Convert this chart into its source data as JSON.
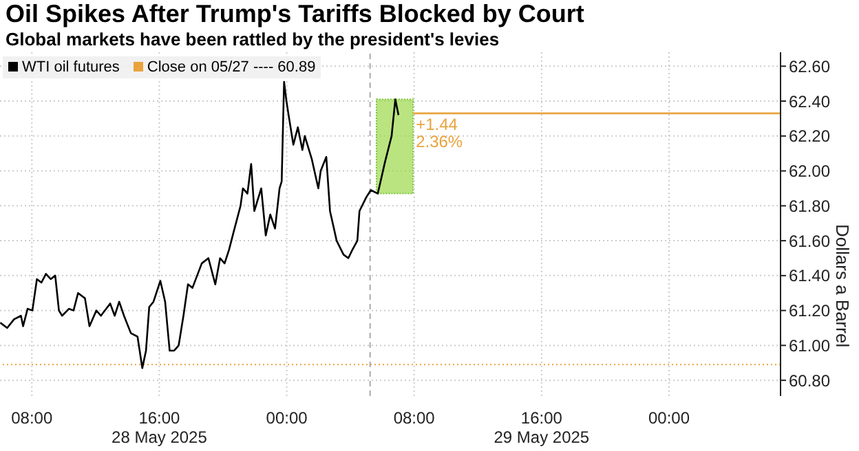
{
  "chart_data": {
    "type": "line",
    "title": "Oil Spikes After Trump's Tariffs Blocked by Court",
    "subtitle": "Global markets have been rattled by the president's levies",
    "ylabel": "Dollars a Barrel",
    "xlim": [
      "2025-05-28T06:00",
      "2025-05-30T07:00"
    ],
    "ylim": [
      60.71,
      62.68
    ],
    "xticks": [
      {
        "value": "2025-05-28T08:00",
        "label": "08:00"
      },
      {
        "value": "2025-05-28T16:00",
        "label": "16:00\n28 May 2025"
      },
      {
        "value": "2025-05-29T00:00",
        "label": "00:00"
      },
      {
        "value": "2025-05-29T08:00",
        "label": "08:00"
      },
      {
        "value": "2025-05-29T16:00",
        "label": "16:00\n29 May 2025"
      },
      {
        "value": "2025-05-30T00:00",
        "label": "00:00"
      }
    ],
    "yticks": [
      {
        "value": 60.8,
        "label": "60.80"
      },
      {
        "value": 61,
        "label": "61.00"
      },
      {
        "value": 61.2,
        "label": "61.20"
      },
      {
        "value": 61.4,
        "label": "61.40"
      },
      {
        "value": 61.6,
        "label": "61.60"
      },
      {
        "value": 61.8,
        "label": "61.80"
      },
      {
        "value": 62,
        "label": "62.00"
      },
      {
        "value": 62.2,
        "label": "62.20"
      },
      {
        "value": 62.4,
        "label": "62.40"
      },
      {
        "value": 62.6,
        "label": "62.60"
      }
    ],
    "grid": true,
    "legend": "top left",
    "marker": "none",
    "line_style": "solid",
    "series": [
      {
        "name": "WTI oil futures",
        "color": "#000000",
        "x": [
          "2025-05-28T06:01",
          "2025-05-28T06:27",
          "2025-05-28T06:53",
          "2025-05-28T07:19",
          "2025-05-28T07:27",
          "2025-05-28T07:44",
          "2025-05-28T08:02",
          "2025-05-28T08:19",
          "2025-05-28T08:36",
          "2025-05-28T08:53",
          "2025-05-28T09:11",
          "2025-05-28T09:28",
          "2025-05-28T09:42",
          "2025-05-28T09:54",
          "2025-05-28T10:20",
          "2025-05-28T10:37",
          "2025-05-28T10:54",
          "2025-05-28T11:20",
          "2025-05-28T11:37",
          "2025-05-28T12:03",
          "2025-05-28T12:20",
          "2025-05-28T12:55",
          "2025-05-28T13:12",
          "2025-05-28T13:29",
          "2025-05-28T13:47",
          "2025-05-28T14:13",
          "2025-05-28T14:38",
          "2025-05-28T14:56",
          "2025-05-28T15:10",
          "2025-05-28T15:22",
          "2025-05-28T15:38",
          "2025-05-28T16:04",
          "2025-05-28T16:22",
          "2025-05-28T16:39",
          "2025-05-28T16:56",
          "2025-05-28T17:13",
          "2025-05-28T17:31",
          "2025-05-28T17:48",
          "2025-05-28T18:05",
          "2025-05-28T18:40",
          "2025-05-28T19:05",
          "2025-05-28T19:31",
          "2025-05-28T19:49",
          "2025-05-28T20:06",
          "2025-05-28T20:23",
          "2025-05-28T20:40",
          "2025-05-28T21:06",
          "2025-05-28T21:15",
          "2025-05-28T21:32",
          "2025-05-28T21:46",
          "2025-05-28T21:58",
          "2025-05-28T22:24",
          "2025-05-28T22:41",
          "2025-05-28T22:58",
          "2025-05-28T23:16",
          "2025-05-28T23:33",
          "2025-05-28T23:41",
          "2025-05-28T23:50",
          "2025-05-28T23:59",
          "2025-05-29T00:07",
          "2025-05-29T00:25",
          "2025-05-29T00:42",
          "2025-05-29T00:59",
          "2025-05-29T01:08",
          "2025-05-29T01:34",
          "2025-05-29T01:59",
          "2025-05-29T02:08",
          "2025-05-29T02:29",
          "2025-05-29T02:43",
          "2025-05-29T03:08",
          "2025-05-29T03:34",
          "2025-05-29T03:52",
          "2025-05-29T04:08",
          "2025-05-29T04:26",
          "2025-05-29T04:34",
          "2025-05-29T05:00",
          "2025-05-29T05:17",
          "2025-05-29T05:43",
          "2025-05-29T06:10",
          "2025-05-29T06:35",
          "2025-05-29T06:49",
          "2025-05-29T07:01"
        ],
        "values": [
          61.13,
          61.1,
          61.15,
          61.17,
          61.11,
          61.21,
          61.2,
          61.38,
          61.36,
          61.41,
          61.38,
          61.4,
          61.2,
          61.17,
          61.21,
          61.2,
          61.3,
          61.27,
          61.11,
          61.2,
          61.17,
          61.24,
          61.17,
          61.25,
          61.17,
          61.07,
          61.05,
          60.87,
          60.97,
          61.22,
          61.25,
          61.37,
          61.25,
          60.97,
          60.97,
          61,
          61.17,
          61.35,
          61.33,
          61.47,
          61.5,
          61.35,
          61.5,
          61.47,
          61.55,
          61.65,
          61.8,
          61.9,
          61.87,
          62.04,
          61.77,
          61.9,
          61.63,
          61.75,
          61.67,
          61.9,
          61.94,
          62.51,
          62.4,
          62.32,
          62.15,
          62.25,
          62.12,
          62.2,
          62.07,
          61.9,
          62,
          62.08,
          61.77,
          61.6,
          61.52,
          61.5,
          61.55,
          61.6,
          61.77,
          61.85,
          61.89,
          61.87,
          62.05,
          62.2,
          62.41,
          62.32
        ]
      },
      {
        "color": "#e8a33d",
        "x": [
          "2025-05-29T07:56",
          "2025-05-30T07:00"
        ],
        "values": [
          62.33,
          62.33
        ]
      }
    ],
    "ref_lines": [
      {
        "axis": "y",
        "value": 60.89,
        "label": "Close on 05/27 ---- 60.89",
        "color": "#e8a33d",
        "line_style": "dotted"
      },
      {
        "axis": "x",
        "value": "2025-05-29T05:14",
        "color": "#aaaaaa",
        "line_style": "dashed"
      }
    ],
    "bands": [
      {
        "axis": "x",
        "from": "2025-05-29T05:38",
        "to": "2025-05-29T07:56",
        "color": "#9bd84a"
      }
    ],
    "annotations": [
      {
        "text": "+1.44",
        "x": "2025-05-29T07:56",
        "y": 62.27
      },
      {
        "text": "2.36%",
        "x": "2025-05-29T07:56",
        "y": 62.17
      }
    ]
  }
}
